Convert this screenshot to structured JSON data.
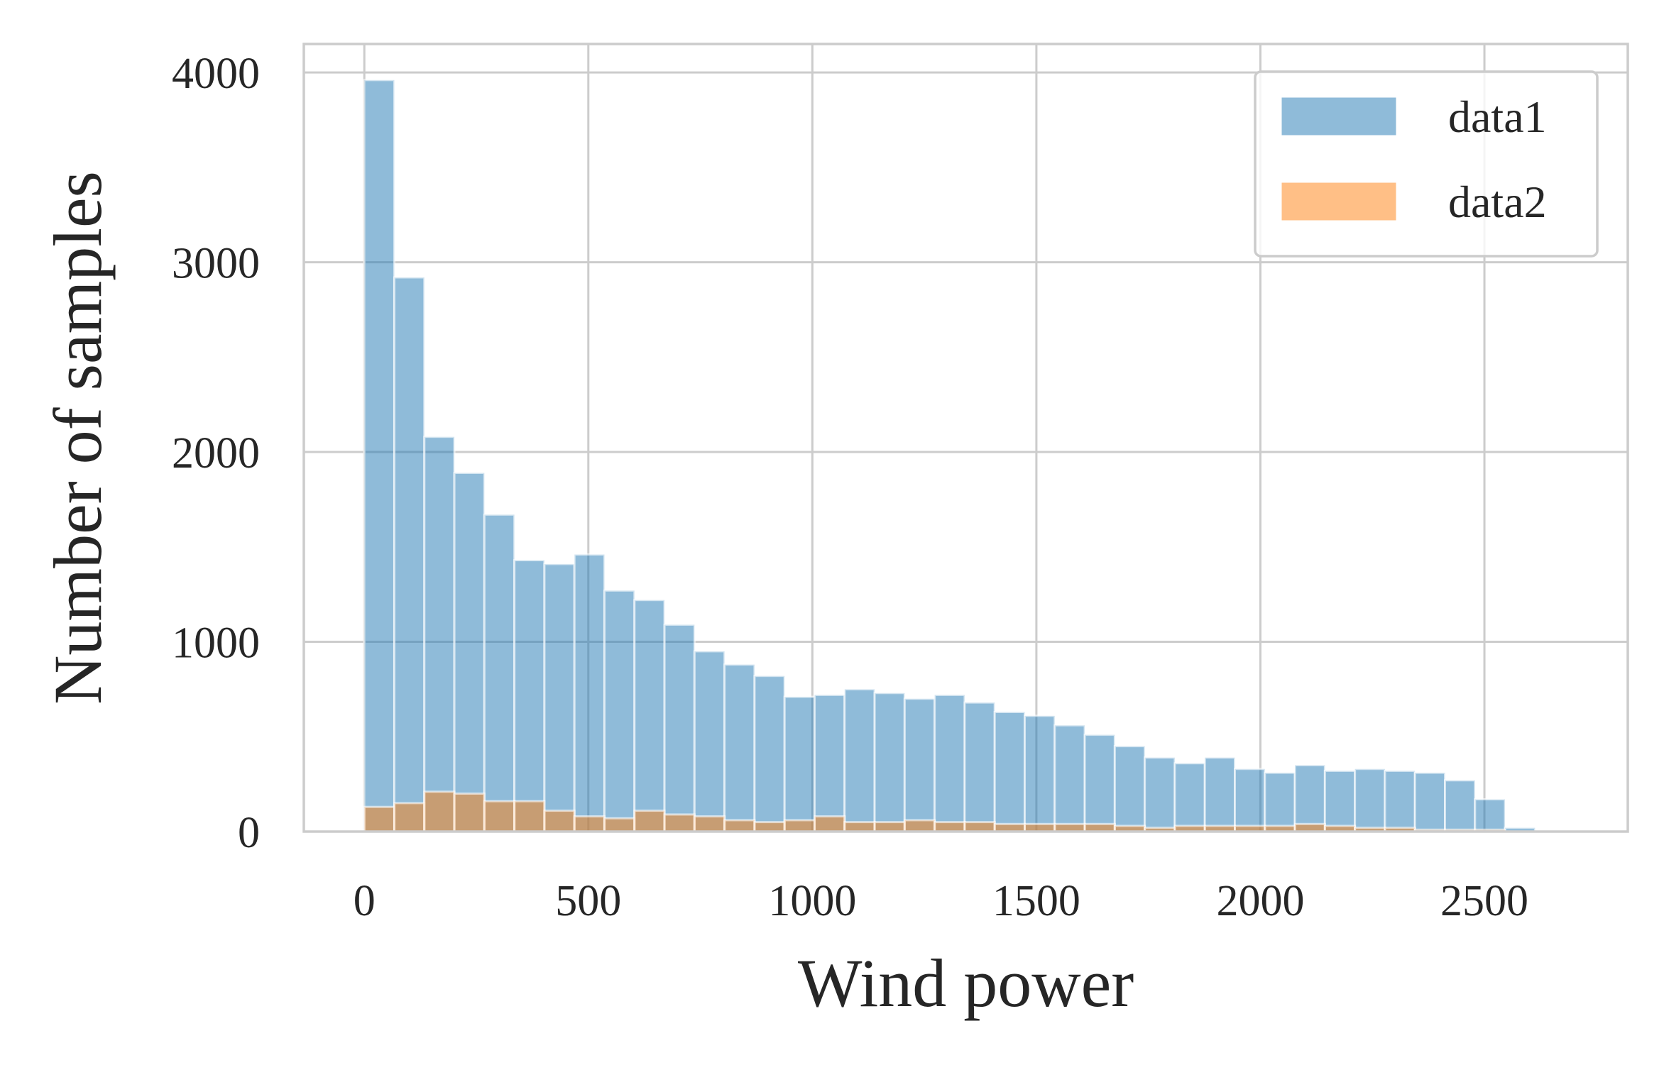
{
  "chart_data": {
    "type": "histogram",
    "title": "",
    "xlabel": "Wind power",
    "ylabel": "Number of samples",
    "xlim": [
      -135,
      2820
    ],
    "ylim": [
      0,
      4150
    ],
    "xticks": [
      0,
      500,
      1000,
      1500,
      2000,
      2500
    ],
    "yticks": [
      0,
      1000,
      2000,
      3000,
      4000
    ],
    "grid": true,
    "legend_position": "top-right",
    "series": [
      {
        "name": "data1",
        "color": "#1f77b4",
        "bin_start": 0,
        "bin_width": 67,
        "values": [
          3960,
          2920,
          2080,
          1890,
          1670,
          1430,
          1410,
          1460,
          1270,
          1220,
          1090,
          950,
          880,
          820,
          710,
          720,
          750,
          730,
          700,
          720,
          680,
          630,
          610,
          560,
          510,
          450,
          390,
          360,
          390,
          330,
          310,
          350,
          320,
          330,
          320,
          310,
          270,
          170,
          20
        ]
      },
      {
        "name": "data2",
        "color": "#ff7f0e",
        "bin_start": 0,
        "bin_width": 67,
        "values": [
          130,
          150,
          210,
          200,
          160,
          160,
          110,
          80,
          70,
          110,
          90,
          80,
          60,
          50,
          60,
          80,
          50,
          50,
          60,
          50,
          50,
          40,
          40,
          40,
          40,
          30,
          20,
          30,
          30,
          30,
          30,
          40,
          30,
          20,
          20,
          10,
          10,
          10,
          0
        ]
      }
    ]
  }
}
